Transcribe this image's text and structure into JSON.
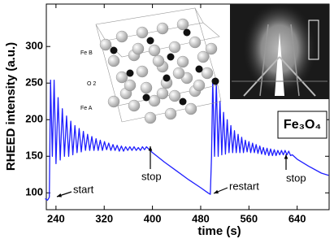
{
  "chart_data": {
    "type": "line",
    "x_label": "time (s)",
    "y_label": "RHEED intensity (a.u.)",
    "xlim": [
      224,
      693
    ],
    "ylim": [
      77,
      358
    ],
    "xticks": [
      240,
      320,
      400,
      480,
      560,
      640
    ],
    "yticks": [
      100,
      150,
      200,
      250,
      300
    ],
    "color": "#1f1fff",
    "x": [
      222,
      226,
      229,
      231,
      234,
      237,
      240,
      243.5,
      247,
      250.5,
      254,
      257.5,
      261,
      264.5,
      268,
      271.5,
      275,
      278.5,
      282,
      285.5,
      289,
      292.5,
      296,
      299.5,
      303,
      306.5,
      310,
      313.5,
      317,
      320.5,
      324,
      327.5,
      331,
      334.5,
      338,
      341.5,
      345,
      348.5,
      352,
      355.5,
      359,
      362.5,
      366,
      369.5,
      373,
      376.5,
      380,
      383.5,
      387,
      390,
      400,
      420,
      440,
      460,
      480,
      492,
      496,
      498,
      500,
      503,
      506,
      509,
      512,
      515,
      518,
      521,
      524,
      527,
      530,
      533,
      536,
      539,
      542,
      545,
      548,
      551,
      554,
      557,
      560,
      563,
      566,
      569,
      572,
      575,
      578,
      581,
      584,
      587,
      590,
      593,
      596,
      599,
      602,
      605,
      608,
      611,
      614,
      617,
      620,
      623,
      626,
      629,
      632,
      640,
      660,
      680,
      692
    ],
    "values": [
      92,
      90,
      94,
      254,
      150,
      254,
      140,
      230,
      145,
      215,
      150,
      205,
      150,
      198,
      152,
      192,
      155,
      188,
      156,
      184,
      158,
      180,
      158,
      177,
      158,
      174,
      158,
      172,
      158,
      170,
      159,
      168,
      158,
      166,
      158,
      165,
      157,
      164,
      157,
      163,
      158,
      163,
      158,
      163,
      158,
      162,
      158,
      163,
      159,
      163,
      155,
      142,
      130,
      118,
      107,
      100,
      98,
      150,
      255,
      150,
      250,
      150,
      225,
      152,
      210,
      153,
      200,
      155,
      192,
      155,
      185,
      155,
      180,
      155,
      176,
      155,
      172,
      156,
      170,
      155,
      168,
      155,
      166,
      154,
      164,
      153,
      162,
      152,
      161,
      151,
      160,
      151,
      159,
      151,
      158,
      152,
      158,
      152,
      158,
      152,
      157,
      151,
      152,
      146,
      136,
      127,
      124
    ],
    "annotations": [
      "start",
      "stop",
      "restart",
      "stop"
    ],
    "inset_labels": [
      "Fe B",
      "O 2",
      "Fe A"
    ],
    "compound_label": "Fe₃O₄"
  }
}
